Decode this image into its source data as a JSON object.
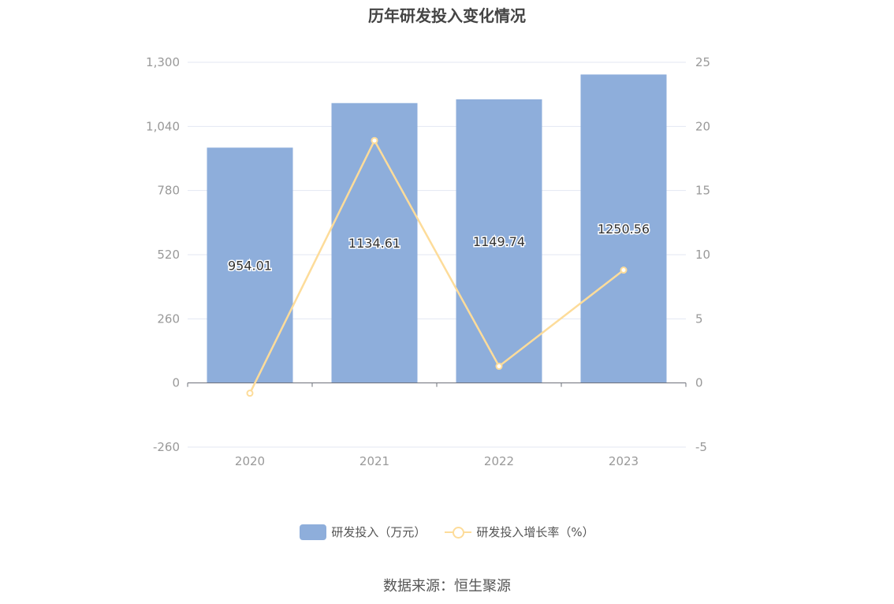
{
  "chart_data": {
    "type": "bar",
    "title": "历年研发投入变化情况",
    "categories": [
      "2020",
      "2021",
      "2022",
      "2023"
    ],
    "series": [
      {
        "name": "研发投入（万元）",
        "type": "bar",
        "axis": "left",
        "values": [
          954.01,
          1134.61,
          1149.74,
          1250.56
        ],
        "labels": [
          "954.01",
          "1134.61",
          "1149.74",
          "1250.56"
        ]
      },
      {
        "name": "研发投入增长率（%）",
        "type": "line",
        "axis": "right",
        "values": [
          -0.8,
          18.9,
          1.3,
          8.8
        ]
      }
    ],
    "y_left": {
      "min": -260,
      "max": 1300,
      "ticks": [
        "-260",
        "0",
        "260",
        "520",
        "780",
        "1,040",
        "1,300"
      ],
      "tick_values": [
        -260,
        0,
        260,
        520,
        780,
        1040,
        1300
      ]
    },
    "y_right": {
      "min": -5,
      "max": 25,
      "ticks": [
        "-5",
        "0",
        "5",
        "10",
        "15",
        "20",
        "25"
      ],
      "tick_values": [
        -5,
        0,
        5,
        10,
        15,
        20,
        25
      ]
    },
    "grid": true,
    "legend_position": "bottom-center",
    "colors": {
      "bar": "#8eaedb",
      "line": "#fddc9a",
      "grid": "#e3e7f2",
      "axis_text": "#999999"
    }
  },
  "source": "数据来源：恒生聚源"
}
